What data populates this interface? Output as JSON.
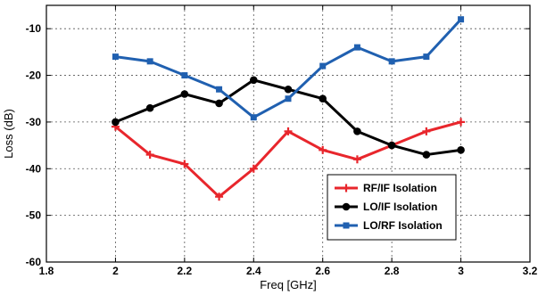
{
  "chart_data": {
    "type": "line",
    "title": "",
    "xlabel": "Freq [GHz]",
    "ylabel": "Loss (dB)",
    "xlim": [
      1.8,
      3.2
    ],
    "ylim": [
      -60,
      -5
    ],
    "xticks": [
      1.8,
      2,
      2.2,
      2.4,
      2.6,
      2.8,
      3,
      3.2
    ],
    "xtick_labels": [
      "1.8",
      "2",
      "2.2",
      "2.4",
      "2.6",
      "2.8",
      "3",
      "3.2"
    ],
    "yticks": [
      -60,
      -50,
      -40,
      -30,
      -20,
      -10
    ],
    "ytick_labels": [
      "-60",
      "-50",
      "-40",
      "-30",
      "-20",
      "-10"
    ],
    "grid": true,
    "legend_position": "bottom-right",
    "x": [
      2.0,
      2.1,
      2.2,
      2.3,
      2.4,
      2.5,
      2.6,
      2.7,
      2.8,
      2.9,
      3.0
    ],
    "series": [
      {
        "name": "RF/IF Isolation",
        "color": "#e8262c",
        "marker": "plus",
        "values": [
          -31,
          -37,
          -39,
          -46,
          -40,
          -32,
          -36,
          -38,
          -35,
          -32,
          -30
        ]
      },
      {
        "name": "LO/IF Isolation",
        "color": "#000000",
        "marker": "circle",
        "values": [
          -30,
          -27,
          -24,
          -26,
          -21,
          -23,
          -25,
          -32,
          -35,
          -37,
          -36
        ]
      },
      {
        "name": "LO/RF Isolation",
        "color": "#2060b0",
        "marker": "square",
        "values": [
          -16,
          -17,
          -20,
          -23,
          -29,
          -25,
          -18,
          -14,
          -17,
          -16,
          -8
        ]
      }
    ]
  }
}
